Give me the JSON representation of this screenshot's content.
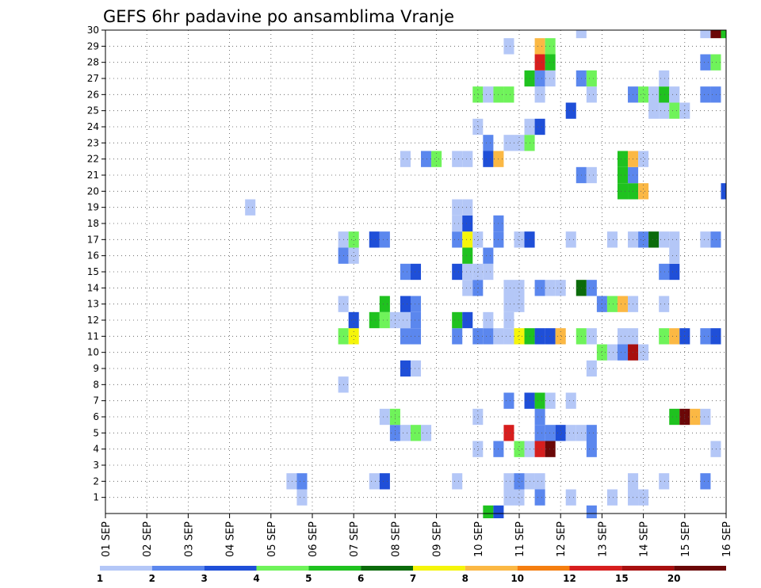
{
  "chart_data": {
    "type": "heatmap",
    "title": "GEFS 6hr padavine po ansamblima Vranje",
    "x_tick_labels": [
      "01 SEP",
      "02 SEP",
      "03 SEP",
      "04 SEP",
      "05 SEP",
      "06 SEP",
      "07 SEP",
      "08 SEP",
      "09 SEP",
      "10 SEP",
      "11 SEP",
      "12 SEP",
      "13 SEP",
      "14 SEP",
      "15 SEP",
      "16 SEP"
    ],
    "y_tick_labels": [
      "1",
      "2",
      "3",
      "4",
      "5",
      "6",
      "7",
      "8",
      "9",
      "10",
      "11",
      "12",
      "13",
      "14",
      "15",
      "16",
      "17",
      "18",
      "19",
      "20",
      "21",
      "22",
      "23",
      "24",
      "25",
      "26",
      "27",
      "28",
      "29",
      "30"
    ],
    "time_steps": 61,
    "member_range": [
      0,
      30
    ],
    "grid": "dotted",
    "legend": {
      "placement": "bottom",
      "levels": [
        "1",
        "2",
        "3",
        "4",
        "5",
        "6",
        "7",
        "8",
        "10",
        "12",
        "15",
        "20"
      ],
      "colors": [
        "#b4c7f7",
        "#5b87ee",
        "#1f4fd8",
        "#6ff35a",
        "#1fc21f",
        "#0b6b0b",
        "#f5f50a",
        "#fbb844",
        "#f57e10",
        "#d71e1e",
        "#a80f0f",
        "#6b0707"
      ]
    },
    "cells": [
      [
        19,
        1,
        1
      ],
      [
        39,
        1,
        1
      ],
      [
        40,
        1,
        1
      ],
      [
        42,
        1,
        2
      ],
      [
        45,
        1,
        1
      ],
      [
        49,
        1,
        1
      ],
      [
        51,
        1,
        1
      ],
      [
        52,
        1,
        1
      ],
      [
        18,
        2,
        1
      ],
      [
        19,
        2,
        2
      ],
      [
        26,
        2,
        1
      ],
      [
        27,
        2,
        3
      ],
      [
        34,
        2,
        1
      ],
      [
        39,
        2,
        1
      ],
      [
        40,
        2,
        2
      ],
      [
        41,
        2,
        1
      ],
      [
        42,
        2,
        1
      ],
      [
        51,
        2,
        1
      ],
      [
        54,
        2,
        1
      ],
      [
        58,
        2,
        2
      ],
      [
        36,
        4,
        1
      ],
      [
        38,
        4,
        2
      ],
      [
        40,
        4,
        4
      ],
      [
        41,
        4,
        1
      ],
      [
        42,
        4,
        10
      ],
      [
        43,
        4,
        12
      ],
      [
        47,
        4,
        2
      ],
      [
        59,
        4,
        1
      ],
      [
        28,
        5,
        2
      ],
      [
        29,
        5,
        1
      ],
      [
        30,
        5,
        4
      ],
      [
        31,
        5,
        1
      ],
      [
        39,
        5,
        10
      ],
      [
        42,
        5,
        2
      ],
      [
        43,
        5,
        2
      ],
      [
        44,
        5,
        3
      ],
      [
        45,
        5,
        1
      ],
      [
        46,
        5,
        1
      ],
      [
        47,
        5,
        2
      ],
      [
        27,
        6,
        1
      ],
      [
        28,
        6,
        4
      ],
      [
        36,
        6,
        1
      ],
      [
        42,
        6,
        2
      ],
      [
        55,
        6,
        5
      ],
      [
        56,
        6,
        12
      ],
      [
        57,
        6,
        8
      ],
      [
        58,
        6,
        1
      ],
      [
        39,
        7,
        2
      ],
      [
        41,
        7,
        3
      ],
      [
        42,
        7,
        5
      ],
      [
        43,
        7,
        1
      ],
      [
        45,
        7,
        1
      ],
      [
        23,
        8,
        1
      ],
      [
        29,
        9,
        3
      ],
      [
        30,
        9,
        1
      ],
      [
        47,
        9,
        1
      ],
      [
        48,
        10,
        4
      ],
      [
        49,
        10,
        1
      ],
      [
        50,
        10,
        2
      ],
      [
        51,
        10,
        11
      ],
      [
        52,
        10,
        1
      ],
      [
        23,
        11,
        4
      ],
      [
        24,
        11,
        7
      ],
      [
        29,
        11,
        2
      ],
      [
        30,
        11,
        2
      ],
      [
        34,
        11,
        2
      ],
      [
        36,
        11,
        2
      ],
      [
        37,
        11,
        2
      ],
      [
        38,
        11,
        1
      ],
      [
        39,
        11,
        1
      ],
      [
        40,
        11,
        7
      ],
      [
        41,
        11,
        5
      ],
      [
        42,
        11,
        3
      ],
      [
        43,
        11,
        3
      ],
      [
        44,
        11,
        8
      ],
      [
        46,
        11,
        4
      ],
      [
        47,
        11,
        1
      ],
      [
        50,
        11,
        1
      ],
      [
        51,
        11,
        1
      ],
      [
        54,
        11,
        4
      ],
      [
        55,
        11,
        8
      ],
      [
        56,
        11,
        3
      ],
      [
        58,
        11,
        2
      ],
      [
        59,
        11,
        3
      ],
      [
        24,
        12,
        3
      ],
      [
        26,
        12,
        5
      ],
      [
        27,
        12,
        4
      ],
      [
        28,
        12,
        1
      ],
      [
        29,
        12,
        1
      ],
      [
        30,
        12,
        2
      ],
      [
        34,
        12,
        5
      ],
      [
        35,
        12,
        3
      ],
      [
        37,
        12,
        1
      ],
      [
        39,
        12,
        1
      ],
      [
        23,
        13,
        1
      ],
      [
        27,
        13,
        5
      ],
      [
        29,
        13,
        3
      ],
      [
        30,
        13,
        2
      ],
      [
        39,
        13,
        1
      ],
      [
        40,
        13,
        1
      ],
      [
        48,
        13,
        2
      ],
      [
        49,
        13,
        4
      ],
      [
        50,
        13,
        8
      ],
      [
        51,
        13,
        1
      ],
      [
        54,
        13,
        1
      ],
      [
        35,
        14,
        1
      ],
      [
        36,
        14,
        2
      ],
      [
        39,
        14,
        1
      ],
      [
        40,
        14,
        1
      ],
      [
        42,
        14,
        2
      ],
      [
        43,
        14,
        1
      ],
      [
        44,
        14,
        1
      ],
      [
        46,
        14,
        6
      ],
      [
        47,
        14,
        2
      ],
      [
        29,
        15,
        2
      ],
      [
        30,
        15,
        3
      ],
      [
        34,
        15,
        3
      ],
      [
        35,
        15,
        1
      ],
      [
        36,
        15,
        1
      ],
      [
        37,
        15,
        1
      ],
      [
        54,
        15,
        2
      ],
      [
        55,
        15,
        3
      ],
      [
        23,
        16,
        2
      ],
      [
        24,
        16,
        1
      ],
      [
        35,
        16,
        5
      ],
      [
        37,
        16,
        2
      ],
      [
        55,
        16,
        1
      ],
      [
        23,
        17,
        1
      ],
      [
        24,
        17,
        4
      ],
      [
        26,
        17,
        3
      ],
      [
        27,
        17,
        2
      ],
      [
        34,
        17,
        2
      ],
      [
        35,
        17,
        7
      ],
      [
        36,
        17,
        1
      ],
      [
        38,
        17,
        2
      ],
      [
        40,
        17,
        1
      ],
      [
        41,
        17,
        3
      ],
      [
        45,
        17,
        1
      ],
      [
        49,
        17,
        1
      ],
      [
        51,
        17,
        1
      ],
      [
        52,
        17,
        2
      ],
      [
        53,
        17,
        6
      ],
      [
        54,
        17,
        1
      ],
      [
        55,
        17,
        1
      ],
      [
        58,
        17,
        1
      ],
      [
        59,
        17,
        2
      ],
      [
        34,
        18,
        1
      ],
      [
        35,
        18,
        3
      ],
      [
        38,
        18,
        2
      ],
      [
        14,
        19,
        1
      ],
      [
        34,
        19,
        1
      ],
      [
        35,
        19,
        1
      ],
      [
        50,
        20,
        5
      ],
      [
        51,
        20,
        5
      ],
      [
        52,
        20,
        8
      ],
      [
        60,
        20,
        3
      ],
      [
        46,
        21,
        2
      ],
      [
        47,
        21,
        1
      ],
      [
        50,
        21,
        5
      ],
      [
        51,
        21,
        2
      ],
      [
        29,
        22,
        1
      ],
      [
        31,
        22,
        2
      ],
      [
        32,
        22,
        4
      ],
      [
        34,
        22,
        1
      ],
      [
        35,
        22,
        1
      ],
      [
        37,
        22,
        3
      ],
      [
        38,
        22,
        8
      ],
      [
        50,
        22,
        5
      ],
      [
        51,
        22,
        8
      ],
      [
        52,
        22,
        1
      ],
      [
        37,
        23,
        2
      ],
      [
        39,
        23,
        1
      ],
      [
        40,
        23,
        1
      ],
      [
        41,
        23,
        4
      ],
      [
        36,
        24,
        1
      ],
      [
        41,
        24,
        1
      ],
      [
        42,
        24,
        3
      ],
      [
        45,
        25,
        3
      ],
      [
        53,
        25,
        1
      ],
      [
        54,
        25,
        1
      ],
      [
        55,
        25,
        4
      ],
      [
        56,
        25,
        1
      ],
      [
        36,
        26,
        4
      ],
      [
        37,
        26,
        1
      ],
      [
        38,
        26,
        4
      ],
      [
        39,
        26,
        4
      ],
      [
        42,
        26,
        1
      ],
      [
        47,
        26,
        1
      ],
      [
        51,
        26,
        2
      ],
      [
        52,
        26,
        4
      ],
      [
        53,
        26,
        1
      ],
      [
        54,
        26,
        5
      ],
      [
        55,
        26,
        1
      ],
      [
        58,
        26,
        2
      ],
      [
        59,
        26,
        2
      ],
      [
        41,
        27,
        5
      ],
      [
        42,
        27,
        2
      ],
      [
        43,
        27,
        1
      ],
      [
        46,
        27,
        2
      ],
      [
        47,
        27,
        4
      ],
      [
        54,
        27,
        1
      ],
      [
        42,
        28,
        10
      ],
      [
        43,
        28,
        5
      ],
      [
        58,
        28,
        2
      ],
      [
        59,
        28,
        4
      ],
      [
        39,
        29,
        1
      ],
      [
        42,
        29,
        8
      ],
      [
        43,
        29,
        4
      ],
      [
        46,
        30,
        1
      ],
      [
        58,
        30,
        1
      ],
      [
        59,
        30,
        12
      ],
      [
        60,
        30,
        5
      ],
      [
        37,
        0,
        5
      ],
      [
        38,
        0,
        3
      ],
      [
        47,
        0,
        2
      ]
    ]
  }
}
